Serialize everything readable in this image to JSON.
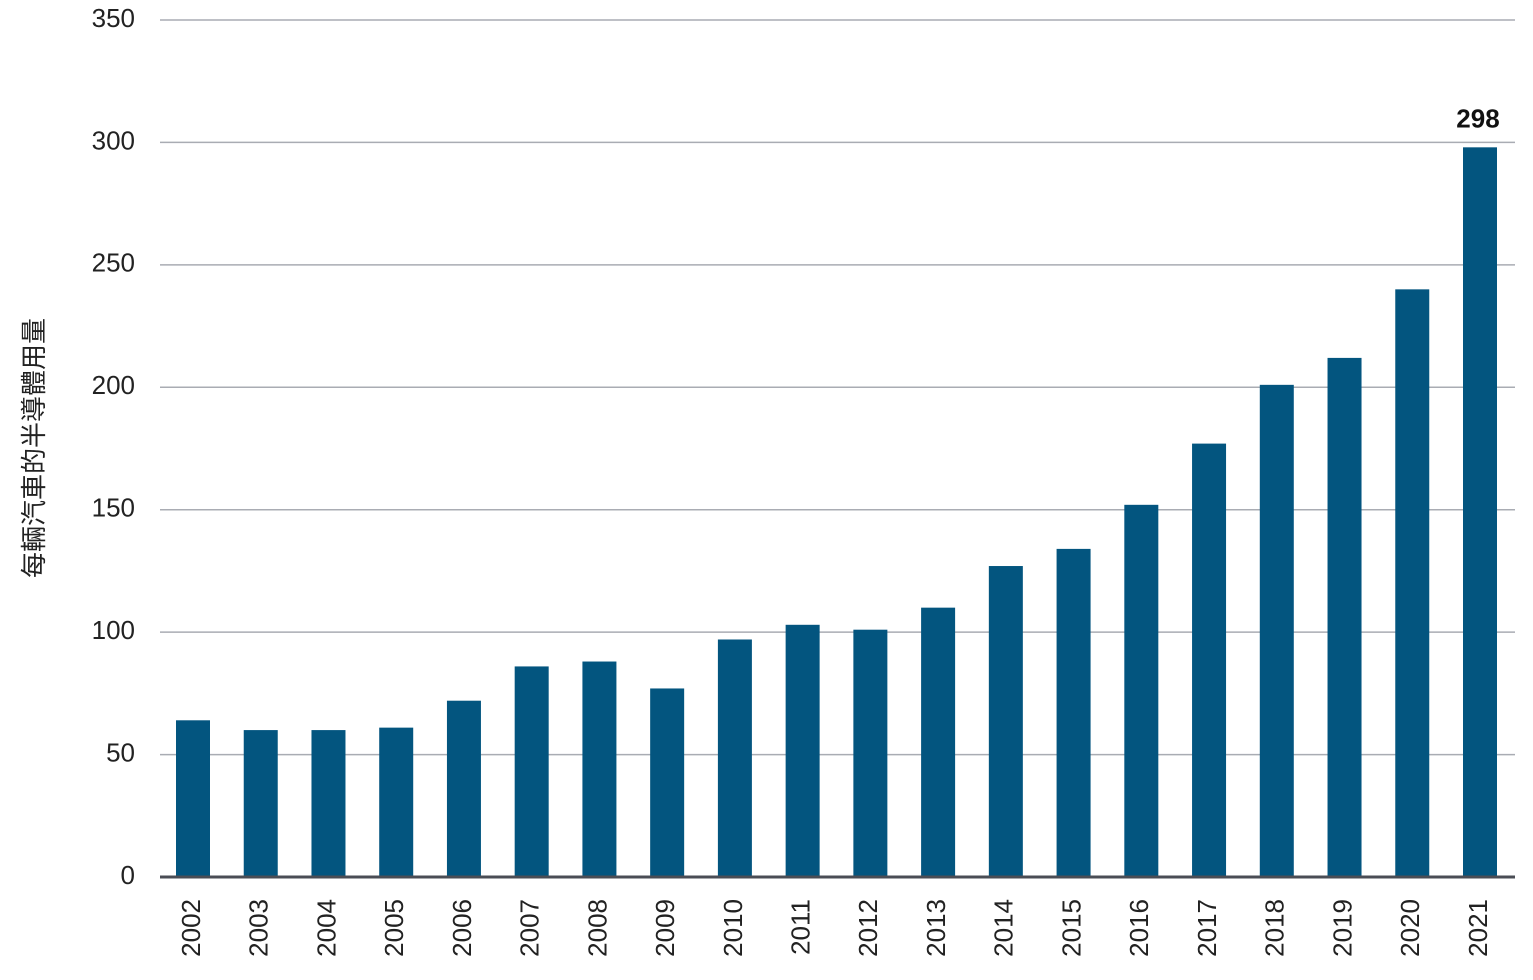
{
  "chart_data": {
    "type": "bar",
    "title": "",
    "xlabel": "",
    "ylabel": "每輛汽車的半導體用量",
    "categories": [
      "2002",
      "2003",
      "2004",
      "2005",
      "2006",
      "2007",
      "2008",
      "2009",
      "2010",
      "2011",
      "2012",
      "2013",
      "2014",
      "2015",
      "2016",
      "2017",
      "2018",
      "2019",
      "2020",
      "2021"
    ],
    "values": [
      64,
      60,
      60,
      61,
      72,
      86,
      88,
      77,
      97,
      103,
      101,
      110,
      127,
      134,
      152,
      177,
      201,
      212,
      240,
      298
    ],
    "ylim": [
      0,
      350
    ],
    "yticks": [
      "0",
      "50",
      "100",
      "150",
      "200",
      "250",
      "300",
      "350"
    ],
    "grid": true,
    "bar_color": "#03557f",
    "data_labels": [
      {
        "category": "2021",
        "text": "298"
      }
    ]
  }
}
